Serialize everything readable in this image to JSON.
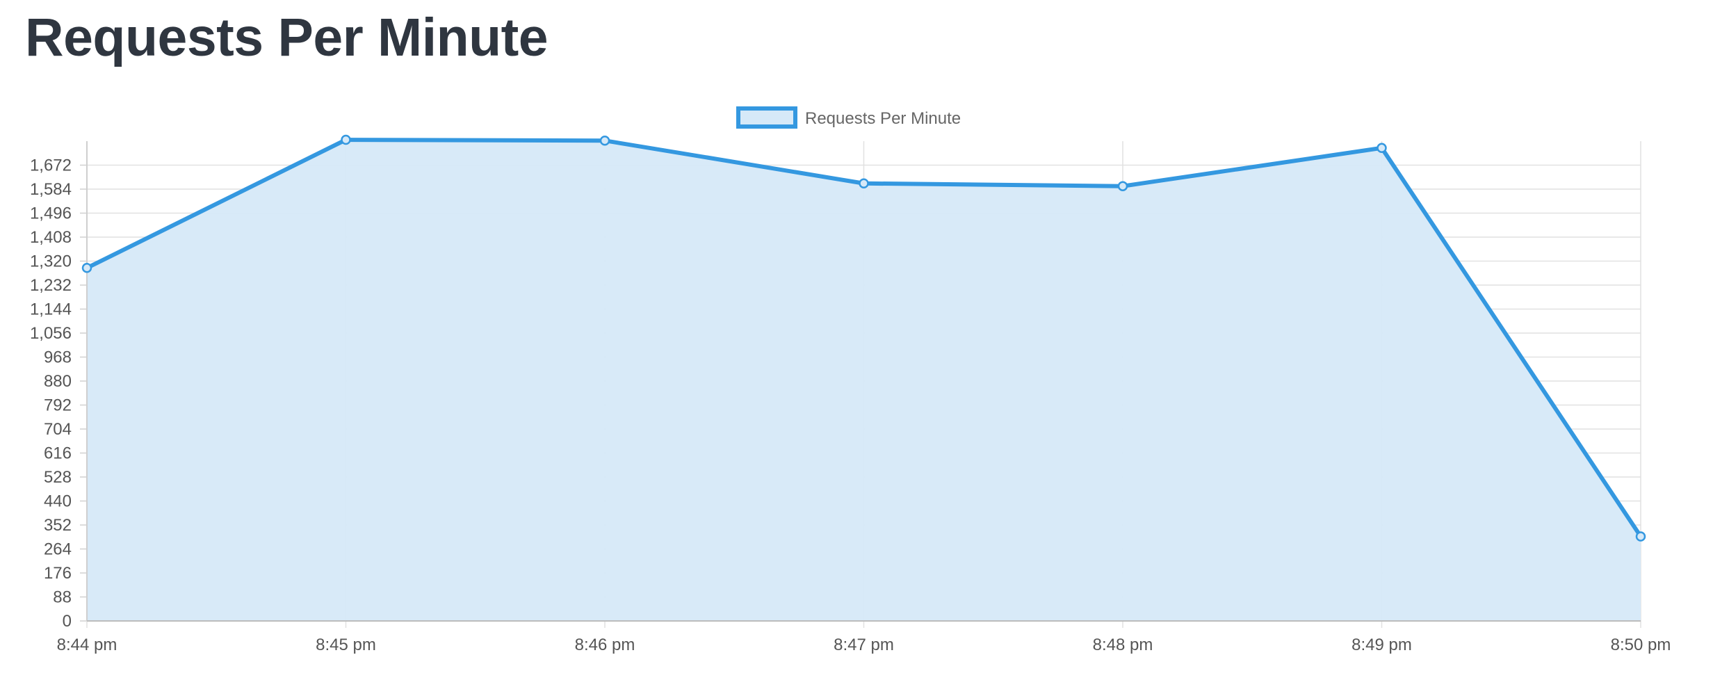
{
  "page": {
    "title": "Requests Per Minute"
  },
  "chart_data": {
    "type": "area",
    "title": "",
    "xlabel": "",
    "ylabel": "",
    "categories": [
      "8:44 pm",
      "8:45 pm",
      "8:46 pm",
      "8:47 pm",
      "8:48 pm",
      "8:49 pm",
      "8:50 pm"
    ],
    "series": [
      {
        "name": "Requests Per Minute",
        "values": [
          1295,
          1765,
          1762,
          1605,
          1595,
          1735,
          310
        ],
        "line_color": "#3498e0",
        "fill_color": "#d6e9f8"
      }
    ],
    "ylim": [
      0,
      1760
    ],
    "y_ticks": [
      0,
      88,
      176,
      264,
      352,
      440,
      528,
      616,
      704,
      792,
      880,
      968,
      1056,
      1144,
      1232,
      1320,
      1408,
      1496,
      1584,
      1672
    ],
    "y_tick_labels": [
      "0",
      "88",
      "176",
      "264",
      "352",
      "440",
      "528",
      "616",
      "704",
      "792",
      "880",
      "968",
      "1,056",
      "1,144",
      "1,232",
      "1,320",
      "1,408",
      "1,496",
      "1,584",
      "1,672"
    ],
    "grid": true,
    "legend_position": "top-center"
  }
}
